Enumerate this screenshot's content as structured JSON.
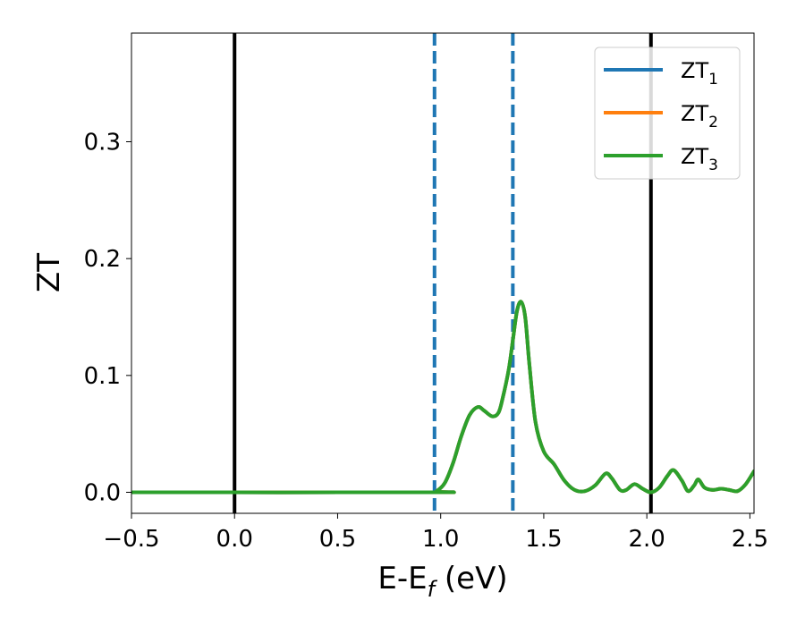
{
  "chart_data": {
    "type": "line",
    "xlabel": {
      "main": "E-E",
      "sub": "f",
      "unit": " (eV)"
    },
    "ylabel": "ZT",
    "xlim": [
      -0.5,
      2.52
    ],
    "ylim": [
      -0.018,
      0.393
    ],
    "xticks": [
      -0.5,
      0.0,
      0.5,
      1.0,
      1.5,
      2.0,
      2.5
    ],
    "xtick_labels": [
      "−0.5",
      "0.0",
      "0.5",
      "1.0",
      "1.5",
      "2.0",
      "2.5"
    ],
    "yticks": [
      0.0,
      0.1,
      0.2,
      0.3
    ],
    "ytick_labels": [
      "0.0",
      "0.1",
      "0.2",
      "0.3"
    ],
    "grid": false,
    "legend_position": "top-right",
    "vlines": [
      {
        "x": 0.0,
        "style": "solid",
        "color": "#000000"
      },
      {
        "x": 2.02,
        "style": "solid",
        "color": "#000000"
      },
      {
        "x": 0.97,
        "style": "dashed",
        "color": "#1f77b4"
      },
      {
        "x": 1.35,
        "style": "dashed",
        "color": "#1f77b4"
      }
    ],
    "series": [
      {
        "name": "ZT",
        "sub": "1",
        "color": "#1f77b4",
        "x": [
          -0.5,
          0.95,
          0.98,
          1.02,
          1.06,
          1.1,
          1.14,
          1.18,
          1.21,
          1.25,
          1.28,
          1.3,
          1.33,
          1.35,
          1.37,
          1.39,
          1.41,
          1.43,
          1.46,
          1.5,
          1.55,
          1.6,
          1.65,
          1.7,
          1.75,
          1.8,
          1.83,
          1.87,
          1.9,
          1.94,
          1.98,
          2.02,
          2.06,
          2.1,
          2.13,
          2.17,
          2.2,
          2.23,
          2.25,
          2.28,
          2.32,
          2.36,
          2.4,
          2.44,
          2.48,
          2.52
        ],
        "y": [
          0.0,
          0.0,
          0.001,
          0.008,
          0.025,
          0.048,
          0.066,
          0.073,
          0.07,
          0.065,
          0.068,
          0.08,
          0.105,
          0.13,
          0.155,
          0.163,
          0.15,
          0.11,
          0.06,
          0.035,
          0.024,
          0.01,
          0.002,
          0.001,
          0.006,
          0.016,
          0.012,
          0.002,
          0.002,
          0.007,
          0.003,
          0.0,
          0.004,
          0.014,
          0.019,
          0.01,
          0.001,
          0.006,
          0.011,
          0.004,
          0.002,
          0.003,
          0.002,
          0.001,
          0.007,
          0.018
        ]
      },
      {
        "name": "ZT",
        "sub": "2",
        "color": "#ff7f0e",
        "x": [
          -0.5,
          0.95,
          0.98,
          1.02,
          1.06,
          1.1,
          1.14,
          1.18,
          1.21,
          1.25,
          1.28,
          1.3,
          1.33,
          1.35,
          1.37,
          1.39,
          1.41,
          1.43,
          1.46,
          1.5,
          1.55,
          1.6,
          1.65,
          1.7,
          1.75,
          1.8,
          1.83,
          1.87,
          1.9,
          1.94,
          1.98,
          2.02,
          2.06,
          2.1,
          2.13,
          2.17,
          2.2,
          2.23,
          2.25,
          2.28,
          2.32,
          2.36,
          2.4,
          2.44,
          2.48,
          2.52
        ],
        "y": [
          0.0,
          0.0,
          0.001,
          0.008,
          0.025,
          0.048,
          0.066,
          0.073,
          0.07,
          0.065,
          0.068,
          0.08,
          0.105,
          0.13,
          0.155,
          0.163,
          0.15,
          0.11,
          0.06,
          0.035,
          0.024,
          0.01,
          0.002,
          0.001,
          0.006,
          0.016,
          0.012,
          0.002,
          0.002,
          0.007,
          0.003,
          0.0,
          0.004,
          0.014,
          0.019,
          0.01,
          0.001,
          0.006,
          0.011,
          0.004,
          0.002,
          0.003,
          0.002,
          0.001,
          0.007,
          0.018
        ]
      },
      {
        "name": "ZT",
        "sub": "3",
        "color": "#2ca02c",
        "x": [
          -0.5,
          0.95,
          0.98,
          1.02,
          1.06,
          1.1,
          1.14,
          1.18,
          1.21,
          1.25,
          1.28,
          1.3,
          1.33,
          1.35,
          1.37,
          1.39,
          1.41,
          1.43,
          1.46,
          1.5,
          1.55,
          1.6,
          1.65,
          1.7,
          1.75,
          1.8,
          1.83,
          1.87,
          1.9,
          1.94,
          1.98,
          2.02,
          2.06,
          2.1,
          2.13,
          2.17,
          2.2,
          2.23,
          2.25,
          2.28,
          2.32,
          2.36,
          2.4,
          2.44,
          2.48,
          2.52
        ],
        "y": [
          0.0,
          0.0,
          0.001,
          0.008,
          0.025,
          0.048,
          0.066,
          0.073,
          0.07,
          0.065,
          0.068,
          0.08,
          0.105,
          0.13,
          0.155,
          0.163,
          0.15,
          0.11,
          0.06,
          0.035,
          0.024,
          0.01,
          0.002,
          0.001,
          0.006,
          0.016,
          0.012,
          0.002,
          0.002,
          0.007,
          0.003,
          0.0,
          0.004,
          0.014,
          0.019,
          0.01,
          0.001,
          0.006,
          0.011,
          0.004,
          0.002,
          0.003,
          0.002,
          0.001,
          0.007,
          0.018
        ]
      }
    ]
  }
}
